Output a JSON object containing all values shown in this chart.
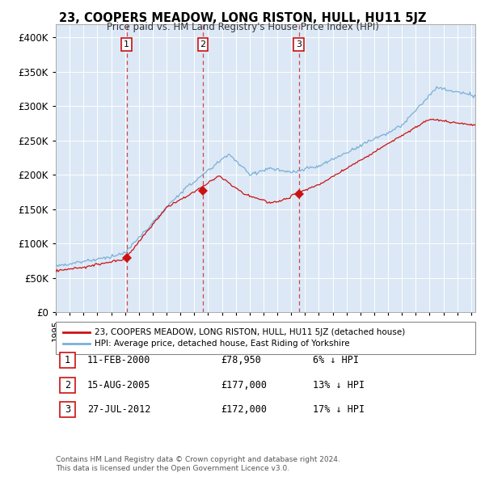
{
  "title": "23, COOPERS MEADOW, LONG RISTON, HULL, HU11 5JZ",
  "subtitle": "Price paid vs. HM Land Registry's House Price Index (HPI)",
  "ylim": [
    0,
    420000
  ],
  "yticks": [
    0,
    50000,
    100000,
    150000,
    200000,
    250000,
    300000,
    350000,
    400000
  ],
  "ytick_labels": [
    "£0",
    "£50K",
    "£100K",
    "£150K",
    "£200K",
    "£250K",
    "£300K",
    "£350K",
    "£400K"
  ],
  "background_color": "#dce8f5",
  "legend_line1": "23, COOPERS MEADOW, LONG RISTON, HULL, HU11 5JZ (detached house)",
  "legend_line2": "HPI: Average price, detached house, East Riding of Yorkshire",
  "red_color": "#cc1111",
  "blue_color": "#7ab0d8",
  "transactions": [
    {
      "num": 1,
      "date": "11-FEB-2000",
      "price": 78950,
      "pct": "6%",
      "year": 2000.12
    },
    {
      "num": 2,
      "date": "15-AUG-2005",
      "price": 177000,
      "pct": "13%",
      "year": 2005.62
    },
    {
      "num": 3,
      "date": "27-JUL-2012",
      "price": 172000,
      "pct": "17%",
      "year": 2012.55
    }
  ],
  "footer1": "Contains HM Land Registry data © Crown copyright and database right 2024.",
  "footer2": "This data is licensed under the Open Government Licence v3.0."
}
